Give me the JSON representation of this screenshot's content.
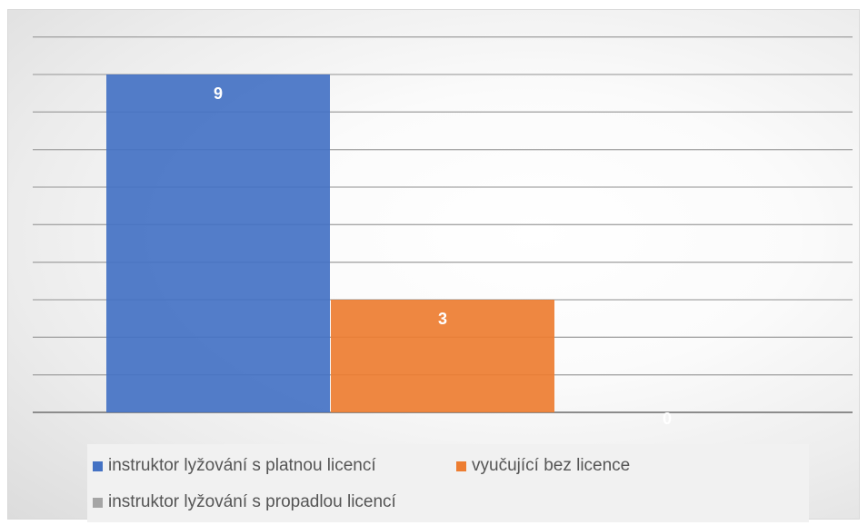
{
  "chart_data": {
    "type": "bar",
    "title": "",
    "xlabel": "",
    "ylabel": "",
    "ylim": [
      0,
      9
    ],
    "grid": true,
    "legend_position": "bottom",
    "series": [
      {
        "name": "instruktor lyžování s platnou licencí",
        "value": 9,
        "color": "#4472c4"
      },
      {
        "name": "vyučující bez licence",
        "value": 3,
        "color": "#ed7d31"
      },
      {
        "name": "instruktor lyžování s propadlou licencí",
        "value": 0,
        "color": "#a5a5a5"
      }
    ]
  }
}
